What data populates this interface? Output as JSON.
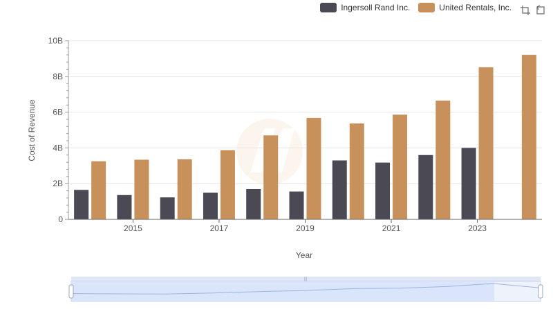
{
  "legend": {
    "series_a": "Ingersoll Rand Inc.",
    "series_b": "United Rentals, Inc."
  },
  "colors": {
    "series_a": "#4a4954",
    "series_b": "#c8915c"
  },
  "toolbox": {
    "icons": [
      "zoom-icon",
      "restore-icon"
    ]
  },
  "chart_data": {
    "type": "bar",
    "categories": [
      "2014",
      "2015",
      "2016",
      "2017",
      "2018",
      "2019",
      "2020",
      "2021",
      "2022",
      "2023",
      "2024"
    ],
    "x_tick_labels": [
      "2015",
      "2017",
      "2019",
      "2021",
      "2023"
    ],
    "y_tick_labels": [
      "0",
      "2B",
      "4B",
      "6B",
      "8B",
      "10B"
    ],
    "ylabel": "Cost of Revenue",
    "xlabel": "Year",
    "ylim": [
      0,
      10000000000
    ],
    "grid": true,
    "legend_position": "top-right",
    "series": [
      {
        "name": "Ingersoll Rand Inc.",
        "values": [
          1650000000,
          1360000000,
          1230000000,
          1490000000,
          1700000000,
          1560000000,
          3300000000,
          3180000000,
          3600000000,
          4000000000,
          null
        ]
      },
      {
        "name": "United Rentals, Inc.",
        "values": [
          3250000000,
          3340000000,
          3360000000,
          3870000000,
          4700000000,
          5680000000,
          5370000000,
          5860000000,
          6650000000,
          8520000000,
          9200000000
        ]
      }
    ]
  }
}
